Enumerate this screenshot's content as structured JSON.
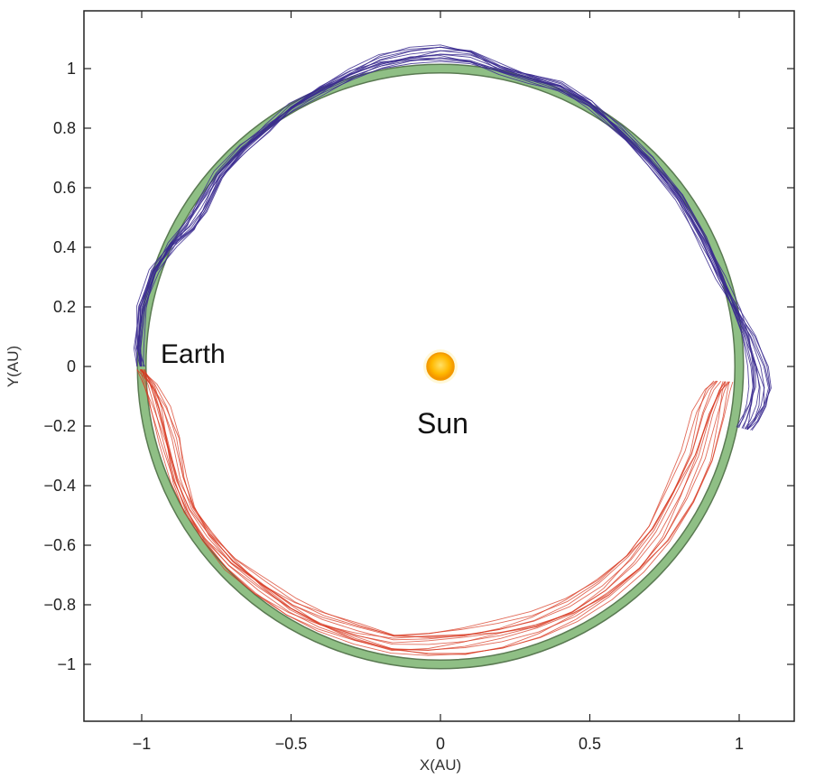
{
  "chart_data": {
    "type": "line",
    "title": "",
    "xlabel": "X(AU)",
    "ylabel": "Y(AU)",
    "xlim": [
      -1.2,
      1.2
    ],
    "ylim": [
      -1.2,
      1.15
    ],
    "x_ticks": [
      -1,
      -0.5,
      0,
      0.5,
      1
    ],
    "x_tick_labels": [
      "−1",
      "−0.5",
      "0",
      "0.5",
      "1"
    ],
    "y_ticks": [
      1,
      0.8,
      0.6,
      0.4,
      0.2,
      0,
      -0.2,
      -0.4,
      -0.6,
      -0.8,
      -1
    ],
    "y_tick_labels": [
      "1",
      "0.8",
      "0.6",
      "0.4",
      "0.2",
      "0",
      "−0.2",
      "−0.4",
      "−0.6",
      "−0.8",
      "−1"
    ],
    "grid": false,
    "series": [
      {
        "role": "earth_orbit",
        "color": "#8fbf85",
        "shape": "circle",
        "center": [
          0,
          0
        ],
        "radius": 1.0
      },
      {
        "role": "upper_trajectories",
        "color": "#3a2a8f",
        "x": [
          -1.0,
          -1.01,
          -1.0,
          -0.96,
          -0.9,
          -0.84,
          -0.8,
          -0.74,
          -0.66,
          -0.58,
          -0.5,
          -0.4,
          -0.3,
          -0.2,
          -0.1,
          0.0,
          0.1,
          0.2,
          0.3,
          0.4,
          0.5,
          0.6,
          0.7,
          0.8,
          0.88,
          0.94,
          0.99,
          1.03,
          1.06,
          1.07,
          1.06,
          1.04,
          1.02
        ],
        "y": [
          0.0,
          0.06,
          0.2,
          0.32,
          0.41,
          0.47,
          0.53,
          0.64,
          0.73,
          0.8,
          0.87,
          0.93,
          0.98,
          1.02,
          1.04,
          1.05,
          1.04,
          1.0,
          0.97,
          0.94,
          0.88,
          0.79,
          0.69,
          0.57,
          0.43,
          0.3,
          0.19,
          0.1,
          0.0,
          -0.07,
          -0.13,
          -0.18,
          -0.21
        ]
      },
      {
        "role": "lower_trajectories",
        "color": "#d83a22",
        "x": [
          -1.0,
          -0.97,
          -0.94,
          -0.91,
          -0.88,
          -0.84,
          -0.78,
          -0.7,
          -0.6,
          -0.5,
          -0.4,
          -0.28,
          -0.16,
          -0.04,
          0.08,
          0.2,
          0.32,
          0.44,
          0.55,
          0.65,
          0.73,
          0.8,
          0.86,
          0.9,
          0.93,
          0.95
        ],
        "y": [
          -0.01,
          -0.06,
          -0.14,
          -0.25,
          -0.38,
          -0.48,
          -0.57,
          -0.66,
          -0.74,
          -0.81,
          -0.86,
          -0.9,
          -0.93,
          -0.93,
          -0.92,
          -0.9,
          -0.87,
          -0.82,
          -0.75,
          -0.66,
          -0.56,
          -0.43,
          -0.3,
          -0.16,
          -0.08,
          -0.05
        ]
      }
    ],
    "annotations": [
      {
        "text": "Earth",
        "x": -1.0,
        "y": 0.0
      },
      {
        "text": "Sun",
        "x": 0.0,
        "y": 0.0
      }
    ]
  },
  "colors": {
    "sun_core": "#ffb800",
    "sun_edge": "#f39a00",
    "axes": "#222222"
  }
}
